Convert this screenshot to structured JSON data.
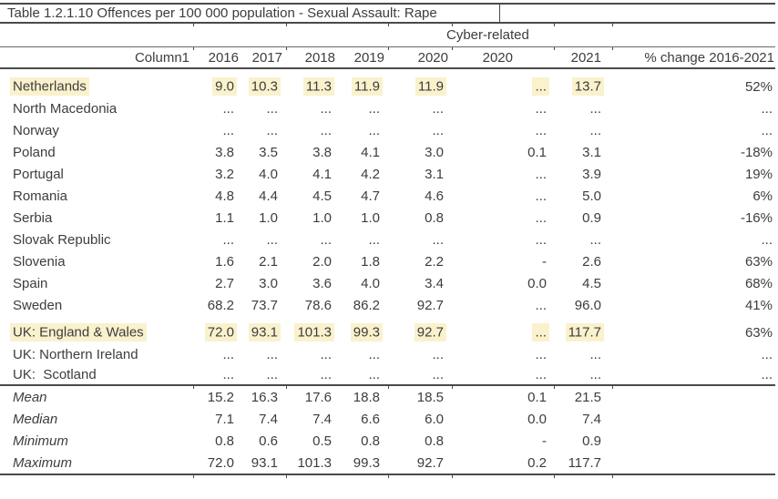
{
  "title": "Table 1.2.1.10 Offences per 100 000 population - Sexual Assault: Rape",
  "cyber_group_header": "Cyber-related",
  "highlight_color": "#FAF1CD",
  "text_color": "#3D3D3D",
  "columns": [
    "Column1",
    "2016",
    "2017",
    "2018",
    "2019",
    "2020",
    "2020",
    "2021",
    "% change 2016-2021"
  ],
  "countries": [
    {
      "name": "Netherlands",
      "hl_name": true,
      "values": [
        "9.0",
        "10.3",
        "11.3",
        "11.9",
        "11.9",
        "...",
        "13.7",
        "52%"
      ],
      "hl": [
        true,
        true,
        true,
        true,
        true,
        true,
        true,
        false
      ]
    },
    {
      "name": "North Macedonia",
      "hl_name": false,
      "values": [
        "...",
        "...",
        "...",
        "...",
        "...",
        "...",
        "...",
        "..."
      ],
      "hl": [
        false,
        false,
        false,
        false,
        false,
        false,
        false,
        false
      ]
    },
    {
      "name": "Norway",
      "hl_name": false,
      "values": [
        "...",
        "...",
        "...",
        "...",
        "...",
        "...",
        "...",
        "..."
      ],
      "hl": [
        false,
        false,
        false,
        false,
        false,
        false,
        false,
        false
      ]
    },
    {
      "name": "Poland",
      "hl_name": false,
      "values": [
        "3.8",
        "3.5",
        "3.8",
        "4.1",
        "3.0",
        "0.1",
        "3.1",
        "-18%"
      ],
      "hl": [
        false,
        false,
        false,
        false,
        false,
        false,
        false,
        false
      ]
    },
    {
      "name": "Portugal",
      "hl_name": false,
      "values": [
        "3.2",
        "4.0",
        "4.1",
        "4.2",
        "3.1",
        "...",
        "3.9",
        "19%"
      ],
      "hl": [
        false,
        false,
        false,
        false,
        false,
        false,
        false,
        false
      ]
    },
    {
      "name": "Romania",
      "hl_name": false,
      "values": [
        "4.8",
        "4.4",
        "4.5",
        "4.7",
        "4.6",
        "...",
        "5.0",
        "6%"
      ],
      "hl": [
        false,
        false,
        false,
        false,
        false,
        false,
        false,
        false
      ]
    },
    {
      "name": "Serbia",
      "hl_name": false,
      "values": [
        "1.1",
        "1.0",
        "1.0",
        "1.0",
        "0.8",
        "...",
        "0.9",
        "-16%"
      ],
      "hl": [
        false,
        false,
        false,
        false,
        false,
        false,
        false,
        false
      ]
    },
    {
      "name": "Slovak Republic",
      "hl_name": false,
      "values": [
        "...",
        "...",
        "...",
        "...",
        "...",
        "...",
        "...",
        "..."
      ],
      "hl": [
        false,
        false,
        false,
        false,
        false,
        false,
        false,
        false
      ]
    },
    {
      "name": "Slovenia",
      "hl_name": false,
      "values": [
        "1.6",
        "2.1",
        "2.0",
        "1.8",
        "2.2",
        "-",
        "2.6",
        "63%"
      ],
      "hl": [
        false,
        false,
        false,
        false,
        false,
        false,
        false,
        false
      ]
    },
    {
      "name": "Spain",
      "hl_name": false,
      "values": [
        "2.7",
        "3.0",
        "3.6",
        "4.0",
        "3.4",
        "0.0",
        "4.5",
        "68%"
      ],
      "hl": [
        false,
        false,
        false,
        false,
        false,
        false,
        false,
        false
      ]
    },
    {
      "name": "Sweden",
      "hl_name": false,
      "values": [
        "68.2",
        "73.7",
        "78.6",
        "86.2",
        "92.7",
        "...",
        "96.0",
        "41%"
      ],
      "hl": [
        false,
        false,
        false,
        false,
        false,
        false,
        false,
        false
      ]
    },
    {
      "name": "UK: England & Wales",
      "hl_name": true,
      "values": [
        "72.0",
        "93.1",
        "101.3",
        "99.3",
        "92.7",
        "...",
        "117.7",
        "63%"
      ],
      "hl": [
        true,
        true,
        true,
        true,
        true,
        true,
        true,
        false
      ]
    },
    {
      "name": "UK: Northern Ireland",
      "hl_name": false,
      "values": [
        "...",
        "...",
        "...",
        "...",
        "...",
        "...",
        "...",
        "..."
      ],
      "hl": [
        false,
        false,
        false,
        false,
        false,
        false,
        false,
        false
      ]
    },
    {
      "name": "UK:  Scotland",
      "hl_name": false,
      "values": [
        "...",
        "...",
        "...",
        "...",
        "...",
        "...",
        "...",
        "..."
      ],
      "hl": [
        false,
        false,
        false,
        false,
        false,
        false,
        false,
        false
      ]
    }
  ],
  "summary": [
    {
      "name": "Mean",
      "values": [
        "15.2",
        "16.3",
        "17.6",
        "18.8",
        "18.5",
        "0.1",
        "21.5",
        ""
      ]
    },
    {
      "name": "Median",
      "values": [
        "7.1",
        "7.4",
        "7.4",
        "6.6",
        "6.0",
        "0.0",
        "7.4",
        ""
      ]
    },
    {
      "name": "Minimum",
      "values": [
        "0.8",
        "0.6",
        "0.5",
        "0.8",
        "0.8",
        "-",
        "0.9",
        ""
      ]
    },
    {
      "name": "Maximum",
      "values": [
        "72.0",
        "93.1",
        "101.3",
        "99.3",
        "92.7",
        "0.2",
        "117.7",
        ""
      ]
    }
  ]
}
